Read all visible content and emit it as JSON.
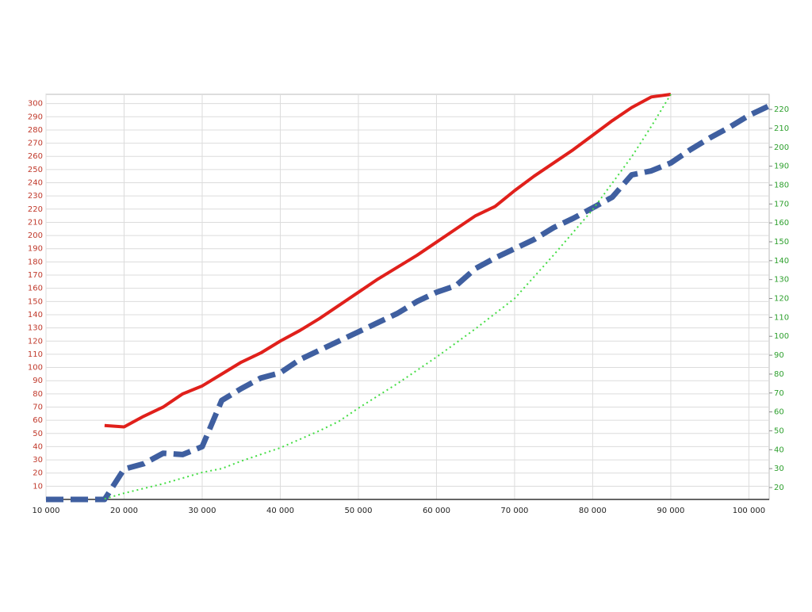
{
  "chart_data": {
    "type": "line",
    "xlim": [
      10000,
      102600
    ],
    "xticks": [
      {
        "value": 10000,
        "label": "10 000"
      },
      {
        "value": 20000,
        "label": "20 000"
      },
      {
        "value": 30000,
        "label": "30 000"
      },
      {
        "value": 40000,
        "label": "40 000"
      },
      {
        "value": 50000,
        "label": "50 000"
      },
      {
        "value": 60000,
        "label": "60 000"
      },
      {
        "value": 70000,
        "label": "70 000"
      },
      {
        "value": 80000,
        "label": "80 000"
      },
      {
        "value": 90000,
        "label": "90 000"
      },
      {
        "value": 100000,
        "label": "100 000"
      }
    ],
    "ylim": [
      0,
      307
    ],
    "yticks": [
      10,
      20,
      30,
      40,
      50,
      60,
      70,
      80,
      90,
      100,
      110,
      120,
      130,
      140,
      150,
      160,
      170,
      180,
      190,
      200,
      210,
      220,
      230,
      240,
      250,
      260,
      270,
      280,
      290,
      300
    ],
    "y2lim": [
      13.7,
      228
    ],
    "y2ticks": [
      20,
      30,
      40,
      50,
      60,
      70,
      80,
      90,
      100,
      110,
      120,
      130,
      140,
      150,
      160,
      170,
      180,
      190,
      200,
      210,
      220
    ],
    "grid": true,
    "y_tick_color": "#c0392b",
    "y2_tick_color": "#2ea02e",
    "series": [
      {
        "color": "#e0201b",
        "style": "solid",
        "x": [
          17500,
          20000,
          22500,
          25000,
          27500,
          30000,
          32500,
          35000,
          37500,
          40000,
          42500,
          45000,
          47500,
          50000,
          52500,
          55000,
          57500,
          60000,
          62500,
          65000,
          67500,
          70000,
          72500,
          75000,
          77500,
          80000,
          82500,
          85000,
          87500,
          90000
        ],
        "values": [
          56,
          55,
          63,
          70,
          80,
          86,
          95,
          104,
          111,
          120,
          128,
          137,
          147,
          157,
          167,
          176,
          185,
          195,
          205,
          215,
          222,
          234,
          245,
          255,
          265,
          276,
          287,
          297,
          305,
          307
        ]
      },
      {
        "color": "#3f5fa0",
        "style": "dashed",
        "x": [
          10000,
          17500,
          20000,
          22500,
          25000,
          27500,
          30000,
          32500,
          35000,
          37500,
          40000,
          42500,
          45000,
          47500,
          50000,
          52500,
          55000,
          57500,
          60000,
          62500,
          65000,
          67500,
          70000,
          72500,
          75000,
          77500,
          80000,
          82500,
          85000,
          87500,
          90000,
          92500,
          95000,
          97500,
          100000,
          102500
        ],
        "values": [
          0,
          0,
          23,
          27,
          35,
          34,
          40,
          75,
          84,
          92,
          96,
          106,
          113,
          120,
          127,
          134,
          141,
          150,
          157,
          162,
          175,
          183,
          190,
          197,
          206,
          213,
          221,
          229,
          246,
          249,
          255,
          265,
          274,
          282,
          291,
          298
        ]
      },
      {
        "color": "#44dd44",
        "style": "dotted",
        "axis": "y2",
        "x": [
          17500,
          20000,
          25000,
          30000,
          32500,
          35000,
          40000,
          45000,
          47500,
          50000,
          55000,
          60000,
          65000,
          67500,
          70000,
          75000,
          80000,
          85000,
          87500,
          90000
        ],
        "values": [
          14,
          17,
          22,
          28,
          30,
          34,
          41,
          50,
          55,
          62,
          75,
          89,
          104,
          112,
          120,
          143,
          167,
          195,
          211,
          228
        ]
      }
    ]
  }
}
